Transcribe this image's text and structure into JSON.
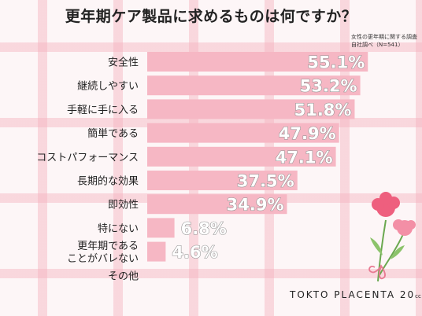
{
  "chart_data": {
    "type": "bar",
    "orientation": "horizontal",
    "title": "更年期ケア製品に求めるものは何ですか？",
    "note": [
      "女性の更年期に関する調査",
      "自社調べ（N=541）"
    ],
    "categories": [
      "安全性",
      "継続しやすい",
      "手軽に手に入る",
      "簡単である",
      "コストパフォーマンス",
      "長期的な効果",
      "即効性",
      "特にない",
      "更年期である\nことがバレない",
      "その他"
    ],
    "values": [
      55.1,
      53.2,
      51.8,
      47.9,
      47.1,
      37.5,
      34.9,
      6.8,
      4.6,
      0.0
    ],
    "value_labels": [
      "55.1%",
      "53.2%",
      "51.8%",
      "47.9%",
      "47.1%",
      "37.5%",
      "34.9%",
      "6.8%",
      "4.6%",
      ""
    ],
    "xlim": [
      0,
      58
    ],
    "bar_color": "#f6b7c4",
    "grid": false
  },
  "brand": {
    "name": "TOKTO PLACENTA 20",
    "suffix": "cc"
  }
}
